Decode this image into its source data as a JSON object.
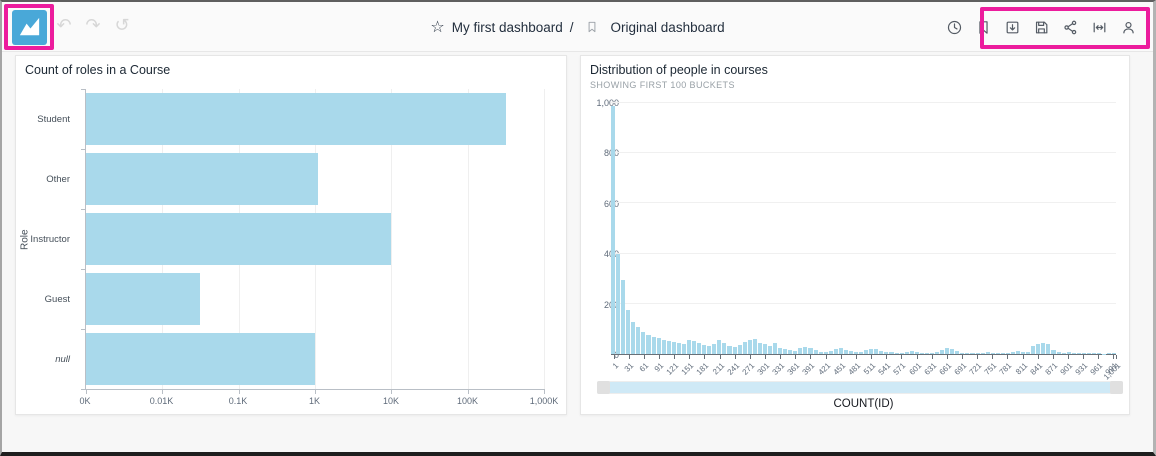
{
  "window": {
    "highlight_color": "#ec1c9d",
    "bar_color": "#a9d9eb"
  },
  "header": {
    "breadcrumb": {
      "dashboard": "My first dashboard",
      "separator": "/",
      "sheet": "Original dashboard"
    },
    "history": {
      "undo_glyph": "↶",
      "redo_glyph": "↷",
      "reset_glyph": "↺"
    },
    "star_glyph": "☆",
    "toolbar_icons": [
      "clock-icon",
      "bookmark-icon",
      "export-icon",
      "save-icon",
      "share-icon",
      "fit-width-icon",
      "user-icon"
    ]
  },
  "chart_data": [
    {
      "id": "roles-bar-chart",
      "type": "bar",
      "orientation": "horizontal",
      "title": "Count of roles in a Course",
      "ylabel": "Role",
      "categories": [
        "Student",
        "Other",
        "Instructor",
        "Guest",
        "null"
      ],
      "values": [
        316000,
        1100,
        10000,
        31,
        1000
      ],
      "x_scale": "log",
      "x_ticks": [
        "0K",
        "0.01K",
        "0.1K",
        "1K",
        "10K",
        "100K",
        "1,000K"
      ],
      "grid": "vertical"
    },
    {
      "id": "people-histogram",
      "type": "bar",
      "title": "Distribution of people in courses",
      "subtitle": "SHOWING FIRST 100 BUCKETS",
      "xlabel": "COUNT(ID)",
      "ylim": [
        0,
        1000
      ],
      "y_ticks": [
        "0",
        "200",
        "400",
        "600",
        "800",
        "1,000"
      ],
      "x_ticks": [
        "1",
        "31",
        "61",
        "91",
        "121",
        "151",
        "181",
        "211",
        "241",
        "271",
        "301",
        "331",
        "361",
        "391",
        "421",
        "451",
        "481",
        "511",
        "541",
        "571",
        "601",
        "631",
        "661",
        "691",
        "721",
        "751",
        "781",
        "811",
        "841",
        "871",
        "901",
        "931",
        "961",
        "991",
        "1,001"
      ],
      "values": [
        990,
        400,
        295,
        175,
        128,
        107,
        88,
        76,
        68,
        62,
        57,
        52,
        48,
        44,
        40,
        54,
        50,
        44,
        34,
        30,
        40,
        54,
        42,
        33,
        28,
        35,
        47,
        54,
        60,
        45,
        38,
        30,
        44,
        25,
        18,
        15,
        12,
        24,
        28,
        22,
        15,
        10,
        8,
        12,
        18,
        22,
        17,
        12,
        8,
        10,
        15,
        20,
        18,
        14,
        10,
        8,
        6,
        5,
        8,
        14,
        10,
        6,
        5,
        4,
        8,
        17,
        22,
        20,
        12,
        6,
        5,
        4,
        3,
        5,
        8,
        6,
        4,
        3,
        5,
        8,
        12,
        10,
        8,
        30,
        38,
        45,
        40,
        15,
        8,
        5,
        10,
        6,
        4,
        3,
        5,
        4,
        3,
        2,
        4,
        6
      ],
      "grid": "horizontal"
    }
  ]
}
